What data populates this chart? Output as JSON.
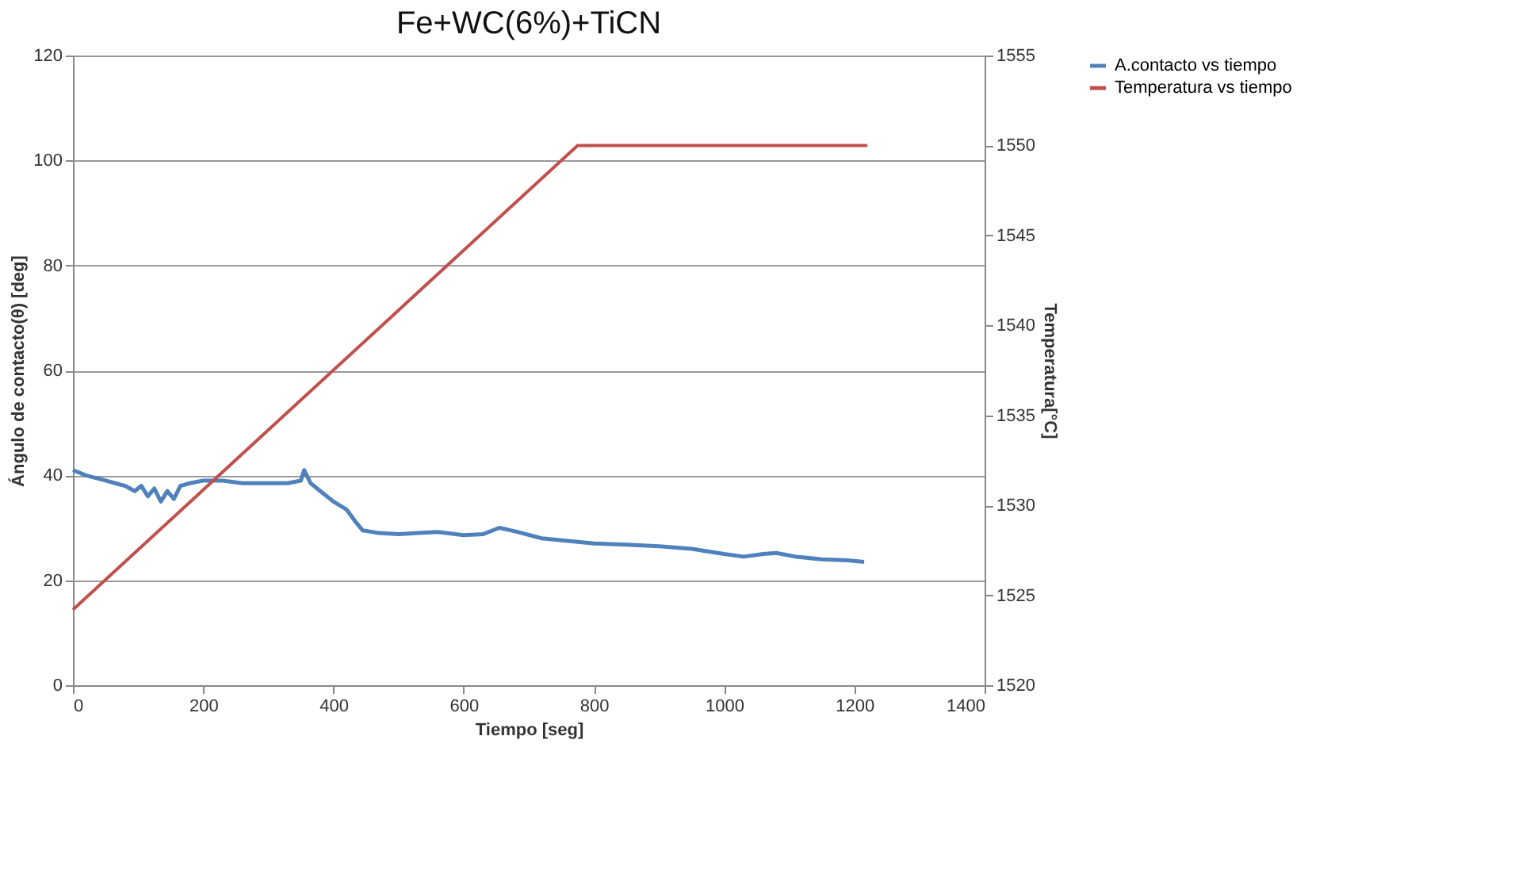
{
  "chart_data": {
    "type": "line",
    "title": "Fe+WC(6%)+TiCN",
    "xlabel": "Tiempo [seg]",
    "ylabel": "Ángulo de contacto(θ) [deg]",
    "y2label": "Temperatura[°C]",
    "xlim": [
      0,
      1400
    ],
    "xticks": [
      0,
      200,
      400,
      600,
      800,
      1000,
      1200,
      1400
    ],
    "ylim": [
      0,
      120
    ],
    "yticks": [
      0,
      20,
      40,
      60,
      80,
      100,
      120
    ],
    "y2lim": [
      1520,
      1555
    ],
    "y2ticks": [
      1520,
      1525,
      1530,
      1535,
      1540,
      1545,
      1550,
      1555
    ],
    "grid": "y",
    "legend": "right",
    "series": [
      {
        "name": "A.contacto vs tiempo",
        "color": "#4f81bd",
        "x": [
          0,
          10,
          20,
          35,
          50,
          65,
          80,
          95,
          105,
          115,
          125,
          135,
          145,
          155,
          165,
          180,
          200,
          230,
          260,
          300,
          330,
          350,
          355,
          365,
          380,
          400,
          420,
          435,
          445,
          470,
          500,
          530,
          560,
          600,
          630,
          655,
          680,
          720,
          760,
          800,
          850,
          900,
          950,
          1000,
          1030,
          1060,
          1080,
          1110,
          1150,
          1190,
          1215
        ],
        "values": [
          41,
          40.5,
          40,
          39.5,
          39,
          38.5,
          38,
          37,
          38,
          36,
          37.5,
          35,
          37,
          35.5,
          38,
          38.5,
          39,
          39,
          38.5,
          38.5,
          38.5,
          39,
          41,
          38.5,
          37,
          35,
          33.5,
          31,
          29.5,
          29,
          28.8,
          29,
          29.2,
          28.6,
          28.8,
          30,
          29.3,
          28,
          27.5,
          27,
          26.8,
          26.5,
          26,
          25,
          24.5,
          25,
          25.2,
          24.5,
          24,
          23.8,
          23.5
        ]
      },
      {
        "name": "Temperatura vs tiempo",
        "color": "#c0504d",
        "axis": "y2",
        "x": [
          0,
          775,
          1220
        ],
        "values": [
          1524.2,
          1550,
          1550
        ]
      }
    ]
  }
}
